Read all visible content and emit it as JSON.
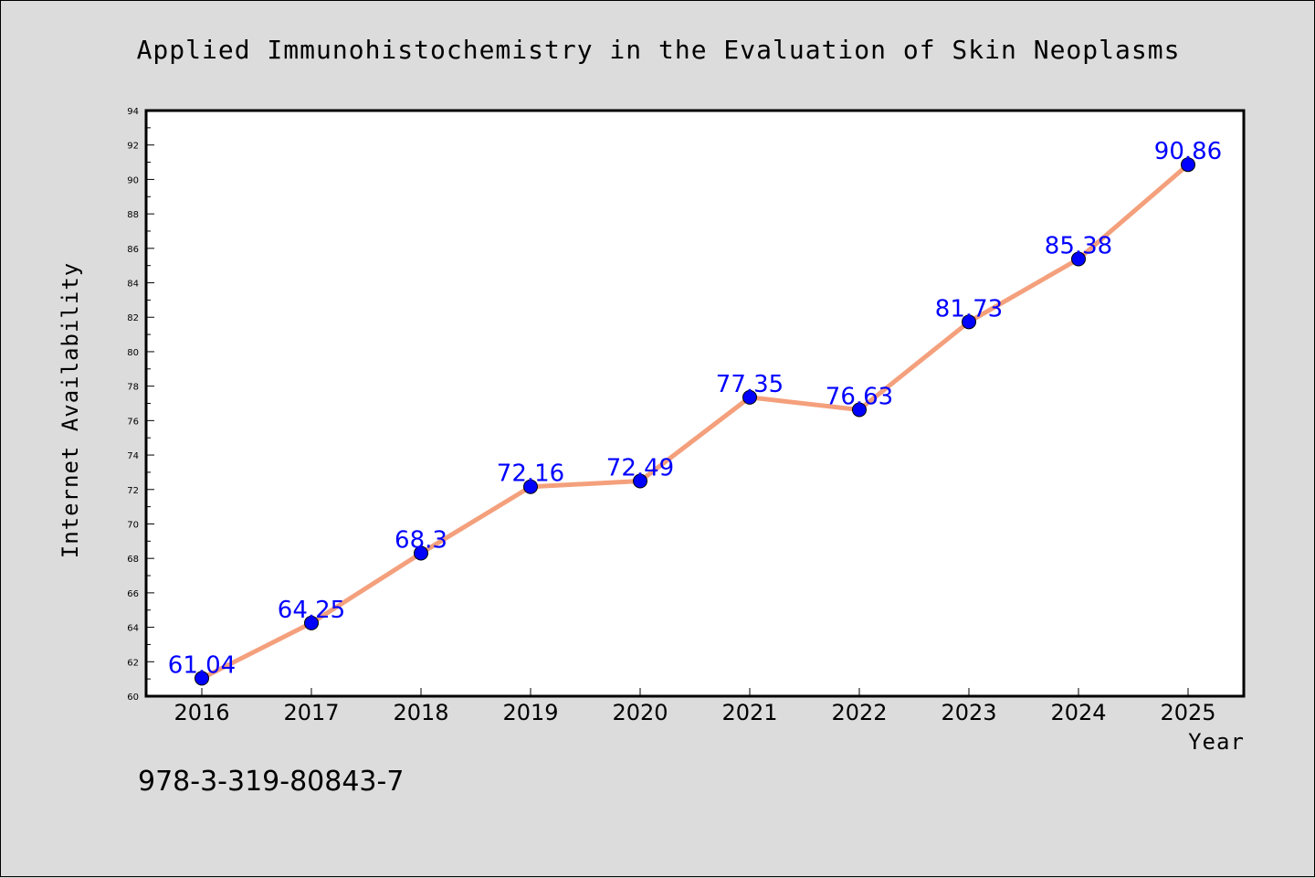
{
  "chart_data": {
    "type": "line",
    "title": "Applied Immunohistochemistry in the Evaluation of Skin Neoplasms",
    "xlabel": "Year",
    "ylabel": "Internet Availability",
    "categories": [
      "2016",
      "2017",
      "2018",
      "2019",
      "2020",
      "2021",
      "2022",
      "2023",
      "2024",
      "2025"
    ],
    "series": [
      {
        "values": [
          61.04,
          64.25,
          68.3,
          72.16,
          72.49,
          77.35,
          76.63,
          81.73,
          85.38,
          90.86
        ],
        "labels": [
          "61.04",
          "64.25",
          "68.3",
          "72.16",
          "72.49",
          "77.35",
          "76.63",
          "81.73",
          "85.38",
          "90.86"
        ]
      }
    ],
    "ylim": [
      60,
      94
    ],
    "yticks": [
      "60",
      "62",
      "64",
      "66",
      "68",
      "70",
      "72",
      "74",
      "76",
      "78",
      "80",
      "82",
      "84",
      "86",
      "88",
      "90",
      "92",
      "94"
    ],
    "grid": false,
    "line_color": "#f4a07c",
    "marker_color": "#0000ff",
    "label_color": "#0000ff"
  },
  "footer": {
    "isbn": "978-3-319-80843-7"
  }
}
